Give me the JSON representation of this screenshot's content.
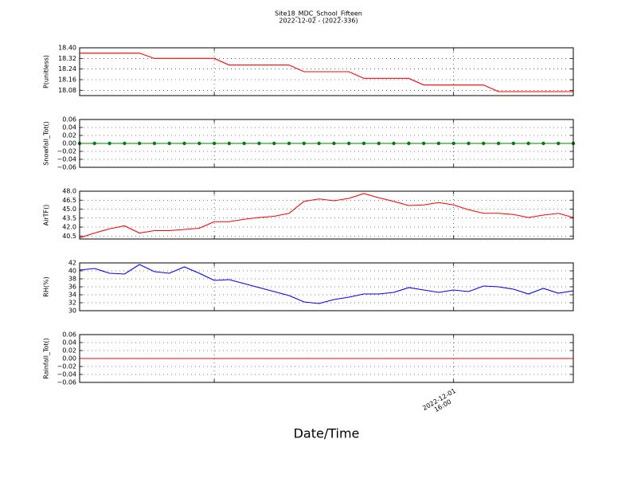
{
  "chart_data": [
    {
      "type": "line",
      "title": "Site18_MDC_School_Fifteen",
      "subtitle": "2022-12-02 - (2022-336)",
      "ylabel": "P(unitless)",
      "categories": [
        null,
        null,
        null,
        null,
        null,
        null,
        null,
        null,
        null,
        null,
        null,
        null,
        null,
        null,
        null,
        null,
        null,
        null,
        null,
        null,
        null,
        null,
        null,
        null,
        null,
        null,
        null,
        null,
        null,
        null,
        null,
        null,
        null,
        null
      ],
      "series": [
        {
          "color": "#ff0000",
          "marker": false,
          "values": [
            18.36,
            18.36,
            18.36,
            18.36,
            18.36,
            18.32,
            18.32,
            18.32,
            18.32,
            18.32,
            18.27,
            18.27,
            18.27,
            18.27,
            18.27,
            18.22,
            18.22,
            18.22,
            18.22,
            18.17,
            18.17,
            18.17,
            18.17,
            18.12,
            18.12,
            18.12,
            18.12,
            18.12,
            18.07,
            18.07,
            18.07,
            18.07,
            18.07,
            18.07
          ]
        }
      ],
      "ylim": [
        18.04,
        18.4
      ],
      "yticks": [
        18.08,
        18.16,
        18.24,
        18.32,
        {
          "value": 18.4,
          "label": "18.40"
        }
      ],
      "grid": true
    },
    {
      "type": "line",
      "ylabel": "Snowfall_Tot()",
      "categories": [
        null,
        null,
        null,
        null,
        null,
        null,
        null,
        null,
        null,
        null,
        null,
        null,
        null,
        null,
        null,
        null,
        null,
        null,
        null,
        null,
        null,
        null,
        null,
        null,
        null,
        null,
        null,
        null,
        null,
        null,
        null,
        null,
        null,
        null
      ],
      "series": [
        {
          "color": "#008000",
          "marker": true,
          "values": [
            0,
            0,
            0,
            0,
            0,
            0,
            0,
            0,
            0,
            0,
            0,
            0,
            0,
            0,
            0,
            0,
            0,
            0,
            0,
            0,
            0,
            0,
            0,
            0,
            0,
            0,
            0,
            0,
            0,
            0,
            0,
            0,
            0,
            0
          ]
        }
      ],
      "ylim": [
        -0.06,
        0.06
      ],
      "yticks": [
        {
          "value": -0.06,
          "label": "−0.06"
        },
        {
          "value": -0.04,
          "label": "−0.04"
        },
        {
          "value": -0.02,
          "label": "−0.02"
        },
        {
          "value": 0,
          "label": "0.00"
        },
        {
          "value": 0.02,
          "label": "0.02"
        },
        {
          "value": 0.04,
          "label": "0.04"
        },
        {
          "value": 0.06,
          "label": "0.06"
        }
      ],
      "grid": true
    },
    {
      "type": "line",
      "ylabel": "AirTF()",
      "categories": [
        null,
        null,
        null,
        null,
        null,
        null,
        null,
        null,
        null,
        null,
        null,
        null,
        null,
        null,
        null,
        null,
        null,
        null,
        null,
        null,
        null,
        null,
        null,
        null,
        null,
        null,
        null,
        null,
        null,
        null,
        null,
        null,
        null,
        null
      ],
      "series": [
        {
          "color": "#ff0000",
          "marker": false,
          "values": [
            40.2,
            41.0,
            41.7,
            42.2,
            41.0,
            41.4,
            41.4,
            41.6,
            41.8,
            42.9,
            42.9,
            43.3,
            43.6,
            43.8,
            44.3,
            46.3,
            46.7,
            46.4,
            46.8,
            47.6,
            46.9,
            46.3,
            45.6,
            45.7,
            46.1,
            45.7,
            44.9,
            44.3,
            44.3,
            44.1,
            43.6,
            44.0,
            44.3,
            43.6
          ]
        }
      ],
      "ylim": [
        40,
        48
      ],
      "yticks": [
        40.5,
        {
          "value": 42,
          "label": "42.0"
        },
        43.5,
        {
          "value": 45,
          "label": "45.0"
        },
        46.5,
        {
          "value": 48,
          "label": "48.0"
        }
      ],
      "grid": true
    },
    {
      "type": "line",
      "ylabel": "RH(%)",
      "categories": [
        null,
        null,
        null,
        null,
        null,
        null,
        null,
        null,
        null,
        null,
        null,
        null,
        null,
        null,
        null,
        null,
        null,
        null,
        null,
        null,
        null,
        null,
        null,
        null,
        null,
        null,
        null,
        null,
        null,
        null,
        null,
        null,
        null,
        null
      ],
      "series": [
        {
          "color": "#0000ff",
          "marker": false,
          "values": [
            40.2,
            40.6,
            39.4,
            39.2,
            41.6,
            39.8,
            39.4,
            41.0,
            39.4,
            37.6,
            37.8,
            36.8,
            35.8,
            34.8,
            33.8,
            32.2,
            31.8,
            32.8,
            33.4,
            34.2,
            34.2,
            34.6,
            35.8,
            35.2,
            34.6,
            35.2,
            34.8,
            36.2,
            36.0,
            35.4,
            34.2,
            35.6,
            34.4,
            35.0
          ]
        }
      ],
      "ylim": [
        30,
        42
      ],
      "yticks": [
        30,
        32,
        34,
        36,
        38,
        40,
        42
      ],
      "grid": true
    },
    {
      "type": "line",
      "ylabel": "Rainfall_Tot()",
      "xlabel": "Date/Time",
      "categories": [
        null,
        null,
        null,
        null,
        null,
        null,
        null,
        null,
        null,
        null,
        null,
        null,
        null,
        null,
        null,
        null,
        null,
        null,
        null,
        null,
        null,
        null,
        null,
        null,
        null,
        null,
        null,
        null,
        null,
        null,
        null,
        null,
        null,
        null
      ],
      "series": [
        {
          "color": "#ff0000",
          "marker": false,
          "values": [
            0,
            0,
            0,
            0,
            0,
            0,
            0,
            0,
            0,
            0,
            0,
            0,
            0,
            0,
            0,
            0,
            0,
            0,
            0,
            0,
            0,
            0,
            0,
            0,
            0,
            0,
            0,
            0,
            0,
            0,
            0,
            0,
            0,
            0
          ]
        }
      ],
      "ylim": [
        -0.06,
        0.06
      ],
      "yticks": [
        {
          "value": -0.06,
          "label": "−0.06"
        },
        {
          "value": -0.04,
          "label": "−0.04"
        },
        {
          "value": -0.02,
          "label": "−0.02"
        },
        {
          "value": 0,
          "label": "0.00"
        },
        {
          "value": 0.02,
          "label": "0.02"
        },
        {
          "value": 0.04,
          "label": "0.04"
        },
        {
          "value": 0.06,
          "label": "0.06"
        }
      ],
      "xticks": [
        {
          "value": 9,
          "label": null
        },
        {
          "value": 25,
          "label": "2022-12-01\n16:00"
        }
      ],
      "grid": true
    }
  ]
}
